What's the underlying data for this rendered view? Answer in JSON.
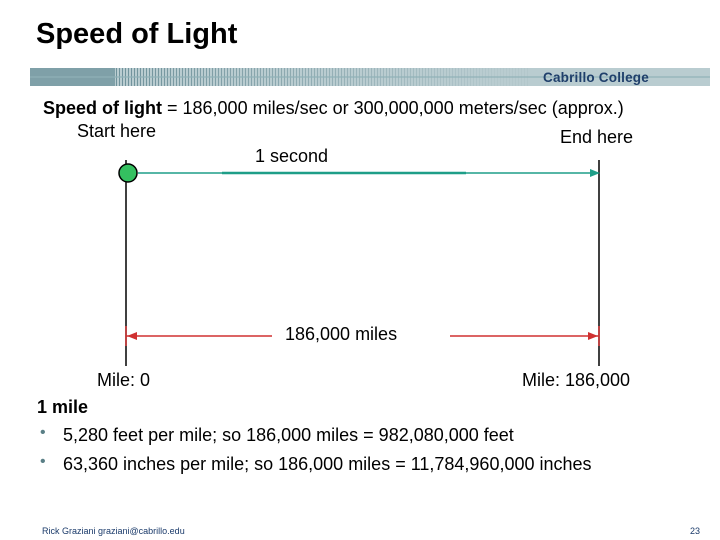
{
  "slide": {
    "title": "Speed of Light",
    "brand": "Cabrillo College",
    "headline_bold": "Speed of light",
    "headline_rest": " = 186,000 miles/sec or 300,000,000 meters/sec (approx.)",
    "start_label": "Start here",
    "end_label": "End here",
    "time_label": "1 second",
    "distance_label": "186,000 miles",
    "mile_start": "Mile: 0",
    "mile_end": "Mile: 186,000",
    "section_heading": "1 mile",
    "bullets": [
      "5,280 feet per mile; so 186,000 miles = 982,080,000 feet",
      "63,360 inches per mile; so 186,000 miles = 11,784,960,000 inches"
    ],
    "footer_left": "Rick Graziani  graziani@cabrillo.edu",
    "page_number": "23"
  },
  "colors": {
    "arrow": "#1e9e88",
    "dimension": "#d03030",
    "dot_fill": "#34c060",
    "banner": "#7fa0a8",
    "brand": "#1f3f6b"
  }
}
